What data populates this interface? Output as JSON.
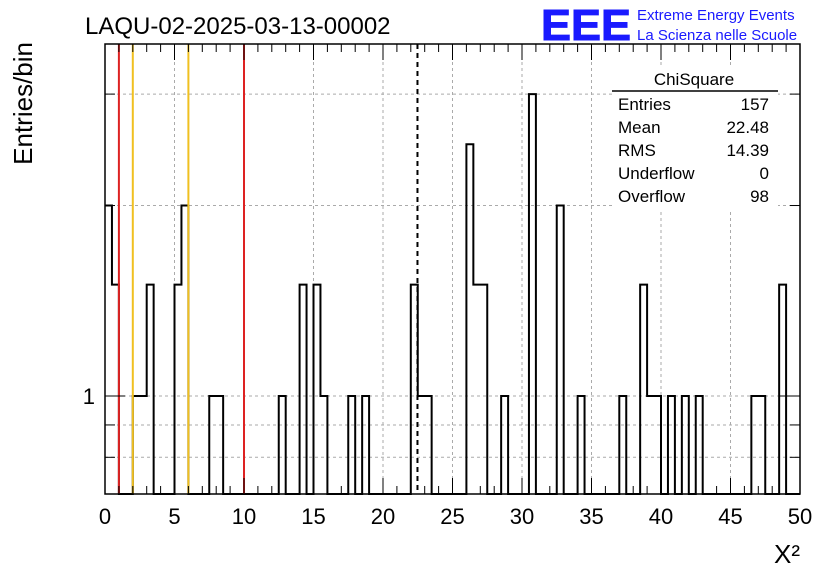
{
  "title": "LAQU-02-2025-03-13-00002",
  "logo": {
    "mark": "EEE",
    "line1": "Extreme Energy Events",
    "line2": "La Scienza nelle Scuole",
    "color": "#1a1aff"
  },
  "stats": {
    "name": "ChiSquare",
    "rows": [
      {
        "label": "Entries",
        "value": "157"
      },
      {
        "label": "Mean",
        "value": "22.48"
      },
      {
        "label": "RMS",
        "value": "14.39"
      },
      {
        "label": "Underflow",
        "value": "0"
      },
      {
        "label": "Overflow",
        "value": "98"
      }
    ]
  },
  "chart_data": {
    "type": "histogram",
    "xlabel": "X²",
    "ylabel": "Entries/bin",
    "xlim": [
      0,
      50
    ],
    "y_scale": "log",
    "ylim": [
      0.7,
      3.6
    ],
    "grid": true,
    "x_ticks": [
      0,
      5,
      10,
      15,
      20,
      25,
      30,
      35,
      40,
      45,
      50
    ],
    "y_tick_labels": [
      {
        "value": 1,
        "label": "1"
      }
    ],
    "bin_width": 0.5,
    "bins": [
      {
        "x0": 0.0,
        "count": 2
      },
      {
        "x0": 0.5,
        "count": 1.5
      },
      {
        "x0": 2.0,
        "count": 1
      },
      {
        "x0": 2.5,
        "count": 1
      },
      {
        "x0": 3.0,
        "count": 1.5
      },
      {
        "x0": 5.0,
        "count": 1.5
      },
      {
        "x0": 5.5,
        "count": 2
      },
      {
        "x0": 7.5,
        "count": 1
      },
      {
        "x0": 8.0,
        "count": 1
      },
      {
        "x0": 12.5,
        "count": 1
      },
      {
        "x0": 14.0,
        "count": 1.5
      },
      {
        "x0": 15.0,
        "count": 1.5
      },
      {
        "x0": 15.5,
        "count": 1
      },
      {
        "x0": 17.5,
        "count": 1
      },
      {
        "x0": 18.5,
        "count": 1
      },
      {
        "x0": 22.0,
        "count": 1.5
      },
      {
        "x0": 22.5,
        "count": 1
      },
      {
        "x0": 23.0,
        "count": 1
      },
      {
        "x0": 26.0,
        "count": 2.5
      },
      {
        "x0": 26.5,
        "count": 1.5
      },
      {
        "x0": 27.0,
        "count": 1.5
      },
      {
        "x0": 28.5,
        "count": 1
      },
      {
        "x0": 30.5,
        "count": 3
      },
      {
        "x0": 32.5,
        "count": 2
      },
      {
        "x0": 34.0,
        "count": 1
      },
      {
        "x0": 37.0,
        "count": 1
      },
      {
        "x0": 38.5,
        "count": 1.5
      },
      {
        "x0": 39.0,
        "count": 1
      },
      {
        "x0": 39.5,
        "count": 1
      },
      {
        "x0": 40.5,
        "count": 1
      },
      {
        "x0": 41.5,
        "count": 1
      },
      {
        "x0": 42.5,
        "count": 1
      },
      {
        "x0": 46.5,
        "count": 1
      },
      {
        "x0": 47.0,
        "count": 1
      },
      {
        "x0": 48.5,
        "count": 1.5
      }
    ],
    "vertical_lines": [
      {
        "x": 1,
        "color": "#dd2222",
        "style": "solid"
      },
      {
        "x": 2,
        "color": "#f0c020",
        "style": "solid"
      },
      {
        "x": 6,
        "color": "#f0c020",
        "style": "solid"
      },
      {
        "x": 10,
        "color": "#dd2222",
        "style": "solid"
      },
      {
        "x": 22.48,
        "color": "#000000",
        "style": "dashed"
      }
    ]
  }
}
